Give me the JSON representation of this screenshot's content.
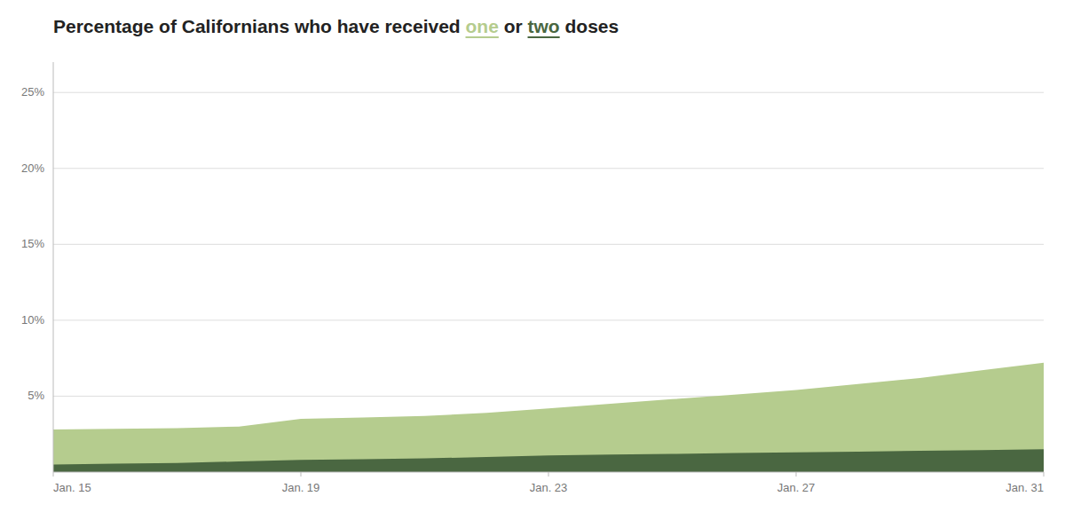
{
  "chart_data": {
    "type": "area",
    "title": "Percentage of Californians who have received one or two doses",
    "categories": [
      "Jan. 15",
      null,
      null,
      null,
      "Jan. 19",
      null,
      null,
      null,
      "Jan. 23",
      null,
      null,
      null,
      "Jan. 27",
      null,
      null,
      null,
      "Jan. 31"
    ],
    "series": [
      {
        "name": "one",
        "color": "#b5cc8e",
        "values": [
          2.8,
          2.85,
          2.9,
          3.0,
          3.5,
          3.6,
          3.7,
          3.9,
          4.2,
          4.5,
          4.8,
          5.1,
          5.4,
          5.8,
          6.2,
          6.7,
          7.2
        ]
      },
      {
        "name": "two",
        "color": "#4a6741",
        "values": [
          0.5,
          0.55,
          0.6,
          0.7,
          0.8,
          0.85,
          0.9,
          1.0,
          1.1,
          1.15,
          1.2,
          1.25,
          1.3,
          1.35,
          1.4,
          1.45,
          1.5
        ]
      }
    ],
    "ylim": [
      0,
      27
    ],
    "yticks": [
      {
        "value": 5,
        "label": "5%"
      },
      {
        "value": 10,
        "label": "10%"
      },
      {
        "value": 15,
        "label": "15%"
      },
      {
        "value": 20,
        "label": "20%"
      },
      {
        "value": 25,
        "label": "25%"
      }
    ],
    "grid": true
  }
}
